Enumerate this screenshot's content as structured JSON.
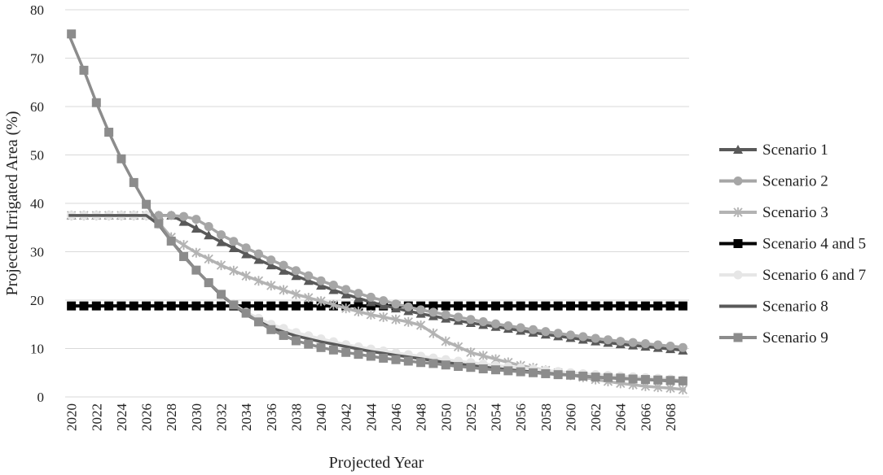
{
  "chart_data": {
    "type": "line",
    "xlabel": "Projected Year",
    "ylabel": "Projected Irrigated Area (%)",
    "ylim": [
      0,
      80
    ],
    "yticks": [
      0,
      10,
      20,
      30,
      40,
      50,
      60,
      70,
      80
    ],
    "xlim": [
      2020,
      2069
    ],
    "xticks": [
      2020,
      2022,
      2024,
      2026,
      2028,
      2030,
      2032,
      2034,
      2036,
      2038,
      2040,
      2042,
      2044,
      2046,
      2048,
      2050,
      2052,
      2054,
      2056,
      2058,
      2060,
      2062,
      2064,
      2066,
      2068
    ],
    "grid": "horizontal",
    "legend_position": "right",
    "series": [
      {
        "name": "Scenario 1",
        "color": "#595959",
        "marker": "triangle",
        "x": [
          2020,
          2028,
          2029,
          2030,
          2032,
          2034,
          2036,
          2038,
          2040,
          2042,
          2044,
          2046,
          2048,
          2050,
          2052,
          2054,
          2056,
          2058,
          2060,
          2062,
          2064,
          2066,
          2068,
          2069
        ],
        "y": [
          37.5,
          37.5,
          36.2,
          34.8,
          32.0,
          29.5,
          27.2,
          25.0,
          23.0,
          21.2,
          19.6,
          18.3,
          17.2,
          16.2,
          15.3,
          14.5,
          13.7,
          12.9,
          12.2,
          11.5,
          10.9,
          10.4,
          9.9,
          9.6
        ]
      },
      {
        "name": "Scenario 2",
        "color": "#a6a6a6",
        "marker": "circle",
        "x": [
          2020,
          2028,
          2029,
          2030,
          2031,
          2032,
          2034,
          2036,
          2038,
          2040,
          2042,
          2044,
          2046,
          2048,
          2050,
          2052,
          2054,
          2056,
          2058,
          2060,
          2062,
          2064,
          2066,
          2068,
          2069
        ],
        "y": [
          37.5,
          37.5,
          37.3,
          36.7,
          35.2,
          33.5,
          30.8,
          28.3,
          26.1,
          24.0,
          22.2,
          20.6,
          19.2,
          18.0,
          17.0,
          16.0,
          15.1,
          14.3,
          13.5,
          12.8,
          12.1,
          11.5,
          11.0,
          10.5,
          10.2
        ]
      },
      {
        "name": "Scenario 3",
        "color": "#b3b3b3",
        "marker": "star",
        "x": [
          2020,
          2026,
          2027,
          2028,
          2030,
          2032,
          2034,
          2036,
          2038,
          2040,
          2042,
          2044,
          2046,
          2047,
          2048,
          2050,
          2052,
          2054,
          2056,
          2058,
          2060,
          2062,
          2064,
          2066,
          2068,
          2069
        ],
        "y": [
          37.5,
          37.5,
          36.0,
          33.0,
          29.8,
          27.2,
          25.0,
          23.0,
          21.2,
          19.8,
          18.3,
          17.0,
          16.0,
          15.5,
          14.8,
          11.5,
          9.2,
          7.8,
          6.5,
          5.5,
          4.5,
          3.6,
          2.8,
          2.2,
          1.8,
          1.5
        ]
      },
      {
        "name": "Scenario 4 and 5",
        "color": "#000000",
        "marker": "square",
        "x": [
          2020,
          2069
        ],
        "y": [
          18.8,
          18.8
        ]
      },
      {
        "name": "Scenario 6 and 7",
        "color": "#e6e6e6",
        "marker": "circle",
        "x": [
          2020,
          2026,
          2027,
          2028,
          2030,
          2032,
          2034,
          2036,
          2038,
          2040,
          2042,
          2044,
          2046,
          2048,
          2050,
          2052,
          2054,
          2056,
          2058,
          2060,
          2062,
          2064,
          2066,
          2068,
          2069
        ],
        "y": [
          37.5,
          37.5,
          35.6,
          32.2,
          26.2,
          21.0,
          17.5,
          15.0,
          13.3,
          12.0,
          10.8,
          9.9,
          9.1,
          8.4,
          7.7,
          7.1,
          6.5,
          6.0,
          5.5,
          5.0,
          4.6,
          4.3,
          4.0,
          3.7,
          3.5
        ]
      },
      {
        "name": "Scenario 8",
        "color": "#595959",
        "marker": "none",
        "x": [
          2020,
          2026,
          2027,
          2028,
          2030,
          2032,
          2034,
          2036,
          2038,
          2040,
          2042,
          2044,
          2046,
          2048,
          2050,
          2052,
          2054,
          2056,
          2058,
          2060,
          2062,
          2064,
          2066,
          2068,
          2069
        ],
        "y": [
          37.5,
          37.5,
          35.6,
          32.2,
          26.2,
          21.0,
          17.0,
          14.3,
          12.6,
          11.4,
          10.4,
          9.4,
          8.6,
          7.9,
          7.1,
          6.5,
          5.9,
          5.4,
          4.9,
          4.5,
          4.1,
          3.8,
          3.6,
          3.3,
          3.2
        ]
      },
      {
        "name": "Scenario 9",
        "color": "#8c8c8c",
        "marker": "square",
        "x": [
          2020,
          2021,
          2022,
          2023,
          2024,
          2025,
          2026,
          2027,
          2028,
          2029,
          2030,
          2031,
          2032,
          2033,
          2034,
          2035,
          2036,
          2037,
          2038,
          2039,
          2040,
          2041,
          2042,
          2043,
          2044,
          2045,
          2046,
          2047,
          2048,
          2049,
          2050,
          2051,
          2052,
          2053,
          2054,
          2055,
          2056,
          2057,
          2058,
          2059,
          2060,
          2061,
          2062,
          2063,
          2064,
          2065,
          2066,
          2067,
          2068,
          2069
        ],
        "y": [
          75.0,
          67.5,
          60.8,
          54.7,
          49.2,
          44.3,
          39.8,
          35.8,
          32.2,
          29.0,
          26.2,
          23.6,
          21.2,
          19.0,
          17.3,
          15.5,
          13.9,
          12.7,
          11.6,
          10.9,
          10.2,
          9.7,
          9.2,
          8.8,
          8.4,
          8.0,
          7.7,
          7.4,
          7.1,
          6.9,
          6.6,
          6.3,
          6.1,
          5.8,
          5.6,
          5.4,
          5.2,
          5.0,
          4.8,
          4.6,
          4.5,
          4.3,
          4.1,
          4.0,
          3.9,
          3.7,
          3.6,
          3.5,
          3.4,
          3.3
        ]
      }
    ]
  }
}
